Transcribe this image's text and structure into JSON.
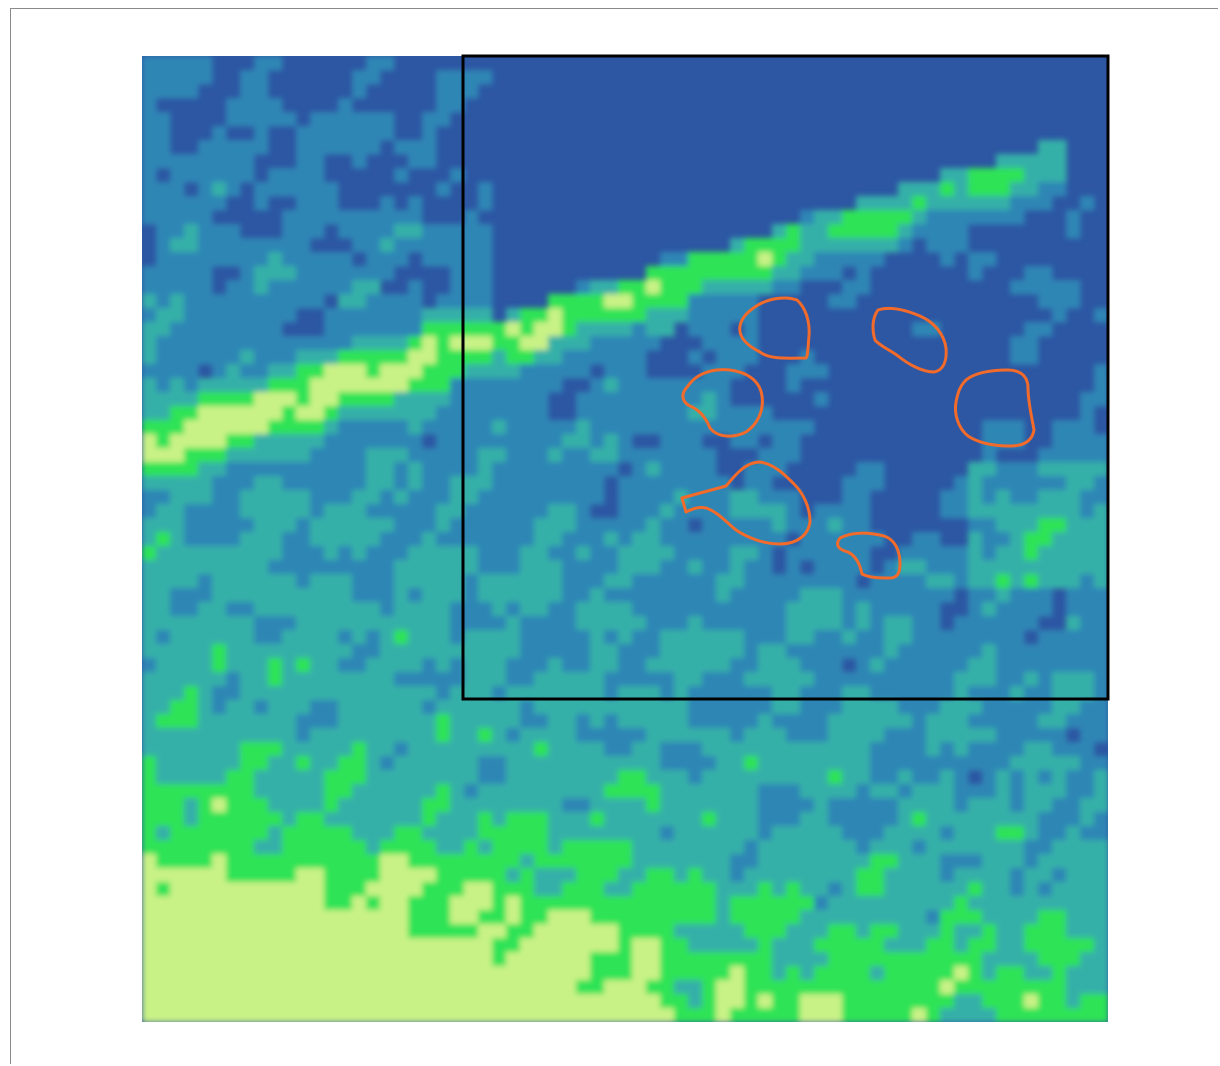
{
  "figure": {
    "type": "raster-heatmap",
    "colors": {
      "low": "#2d56a3",
      "low_mid": "#2e86b5",
      "mid": "#34b0a8",
      "mid_high": "#2fe356",
      "high": "#c9f286",
      "frame_border": "#8a8a8a",
      "inset_box": "#000000",
      "outline": "#f26b2a"
    },
    "inset_box": {
      "label": "",
      "style": "black rectangle"
    },
    "outlined_region_count": 6,
    "legend": "none",
    "axes": "none"
  }
}
